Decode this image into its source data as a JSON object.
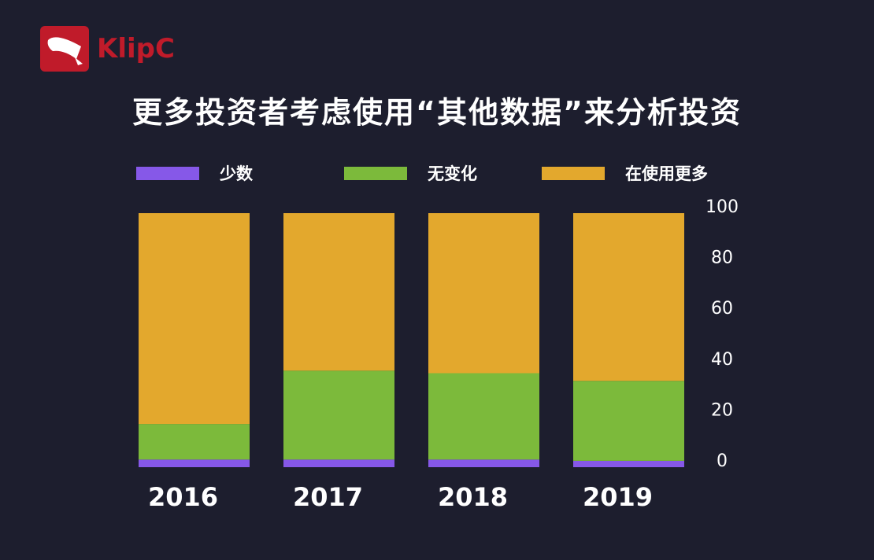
{
  "brand": {
    "name": "KlipC"
  },
  "chart_data": {
    "type": "bar",
    "stacked": true,
    "title": "更多投资者考虑使用“其他数据”来分析投资",
    "categories": [
      "2016",
      "2017",
      "2018",
      "2019"
    ],
    "series": [
      {
        "name": "少数",
        "color": "#8658e8",
        "values": [
          3,
          3,
          3,
          2.5
        ]
      },
      {
        "name": "无变化",
        "color": "#7cba3b",
        "values": [
          14,
          35,
          34,
          31.5
        ]
      },
      {
        "name": "在使用更多",
        "color": "#e3a82d",
        "values": [
          83,
          62,
          63,
          66
        ]
      }
    ],
    "ylim": [
      0,
      100
    ],
    "yticks": [
      "0",
      "20",
      "40",
      "60",
      "80",
      "100"
    ],
    "yaxis_position": "right",
    "legend_position": "top",
    "grid": false
  }
}
